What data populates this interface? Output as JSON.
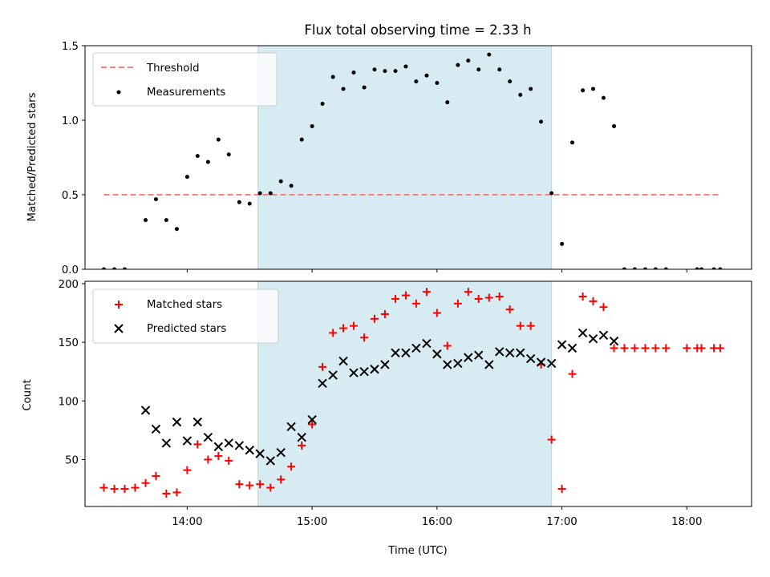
{
  "chart_data": [
    {
      "type": "scatter",
      "title": "Flux total observing time = 2.33 h",
      "xlabel": "",
      "ylabel": "Matched/Predicted stars",
      "xlim_hours": [
        13.182,
        18.518
      ],
      "ylim": [
        0.0,
        1.5
      ],
      "yticks": [
        "0.0",
        "0.5",
        "1.0",
        "1.5"
      ],
      "xticks_hours": [
        14,
        15,
        16,
        17,
        18
      ],
      "shaded_interval_hours": [
        14.567,
        16.917
      ],
      "shade_color": "#add8e6",
      "legend_position": "upper left",
      "series": [
        {
          "name": "Threshold",
          "style": "dashed-line",
          "color": "#ff7f7f",
          "x": [
            13.333,
            18.267
          ],
          "y": [
            0.5,
            0.5
          ]
        },
        {
          "name": "Measurements",
          "style": "dot",
          "color": "#000000",
          "x": [
            13.333,
            13.417,
            13.5,
            13.667,
            13.75,
            13.833,
            13.917,
            14.0,
            14.083,
            14.167,
            14.25,
            14.333,
            14.417,
            14.5,
            14.583,
            14.667,
            14.75,
            14.833,
            14.917,
            15.0,
            15.083,
            15.167,
            15.25,
            15.333,
            15.417,
            15.5,
            15.583,
            15.667,
            15.75,
            15.833,
            15.917,
            16.0,
            16.083,
            16.167,
            16.25,
            16.333,
            16.417,
            16.5,
            16.583,
            16.667,
            16.75,
            16.833,
            16.917,
            17.0,
            17.083,
            17.167,
            17.25,
            17.333,
            17.417,
            17.5,
            17.583,
            17.667,
            17.75,
            17.833,
            18.083,
            18.117,
            18.217,
            18.267
          ],
          "y": [
            0.0,
            0.0,
            0.0,
            0.33,
            0.47,
            0.33,
            0.27,
            0.62,
            0.76,
            0.72,
            0.87,
            0.77,
            0.45,
            0.44,
            0.51,
            0.51,
            0.59,
            0.56,
            0.87,
            0.96,
            1.11,
            1.29,
            1.21,
            1.32,
            1.22,
            1.34,
            1.33,
            1.33,
            1.36,
            1.26,
            1.3,
            1.25,
            1.12,
            1.37,
            1.4,
            1.34,
            1.44,
            1.34,
            1.26,
            1.17,
            1.21,
            0.99,
            0.51,
            0.17,
            0.85,
            1.2,
            1.21,
            1.15,
            0.96,
            0.0,
            0.0,
            0.0,
            0.0,
            0.0,
            0.0,
            0.0,
            0.0,
            0.0
          ]
        }
      ]
    },
    {
      "type": "scatter",
      "title": "",
      "xlabel": "Time (UTC)",
      "ylabel": "Count",
      "xlim_hours": [
        13.182,
        18.518
      ],
      "ylim": [
        10,
        202
      ],
      "yticks": [
        "50",
        "100",
        "150",
        "200"
      ],
      "xticks_hours": [
        14,
        15,
        16,
        17,
        18
      ],
      "xtick_labels": [
        "14:00",
        "15:00",
        "16:00",
        "17:00",
        "18:00"
      ],
      "shaded_interval_hours": [
        14.567,
        16.917
      ],
      "shade_color": "#add8e6",
      "legend_position": "upper left",
      "series": [
        {
          "name": "Matched stars",
          "style": "plus",
          "color": "#ff0000",
          "x": [
            13.333,
            13.417,
            13.5,
            13.583,
            13.667,
            13.75,
            13.833,
            13.917,
            14.0,
            14.083,
            14.167,
            14.25,
            14.333,
            14.417,
            14.5,
            14.583,
            14.667,
            14.75,
            14.833,
            14.917,
            15.0,
            15.083,
            15.167,
            15.25,
            15.333,
            15.417,
            15.5,
            15.583,
            15.667,
            15.75,
            15.833,
            15.917,
            16.0,
            16.083,
            16.167,
            16.25,
            16.333,
            16.417,
            16.5,
            16.583,
            16.667,
            16.75,
            16.833,
            16.917,
            17.0,
            17.083,
            17.167,
            17.25,
            17.333,
            17.417,
            17.5,
            17.583,
            17.667,
            17.75,
            17.833,
            18.0,
            18.083,
            18.117,
            18.217,
            18.267
          ],
          "y": [
            26,
            25,
            25,
            26,
            30,
            36,
            21,
            22,
            41,
            63,
            50,
            53,
            49,
            29,
            28,
            29,
            26,
            33,
            44,
            62,
            80,
            129,
            158,
            162,
            164,
            154,
            170,
            174,
            187,
            190,
            183,
            193,
            175,
            147,
            183,
            193,
            187,
            188,
            189,
            178,
            164,
            164,
            131,
            67,
            25,
            123,
            189,
            185,
            180,
            145,
            145,
            145,
            145,
            145,
            145,
            145,
            145,
            145,
            145,
            145
          ]
        },
        {
          "name": "Predicted stars",
          "style": "cross",
          "color": "#000000",
          "x": [
            13.667,
            13.75,
            13.833,
            13.917,
            14.0,
            14.083,
            14.167,
            14.25,
            14.333,
            14.417,
            14.5,
            14.583,
            14.667,
            14.75,
            14.833,
            14.917,
            15.0,
            15.083,
            15.167,
            15.25,
            15.333,
            15.417,
            15.5,
            15.583,
            15.667,
            15.75,
            15.833,
            15.917,
            16.0,
            16.083,
            16.167,
            16.25,
            16.333,
            16.417,
            16.5,
            16.583,
            16.667,
            16.75,
            16.833,
            16.917,
            17.0,
            17.083,
            17.167,
            17.25,
            17.333,
            17.417
          ],
          "y": [
            92,
            76,
            64,
            82,
            66,
            82,
            69,
            61,
            64,
            62,
            58,
            55,
            49,
            56,
            78,
            69,
            84,
            115,
            122,
            134,
            124,
            125,
            127,
            131,
            141,
            141,
            145,
            149,
            140,
            131,
            132,
            137,
            139,
            131,
            142,
            141,
            141,
            136,
            133,
            132,
            148,
            145,
            158,
            153,
            156,
            151
          ]
        }
      ]
    }
  ]
}
